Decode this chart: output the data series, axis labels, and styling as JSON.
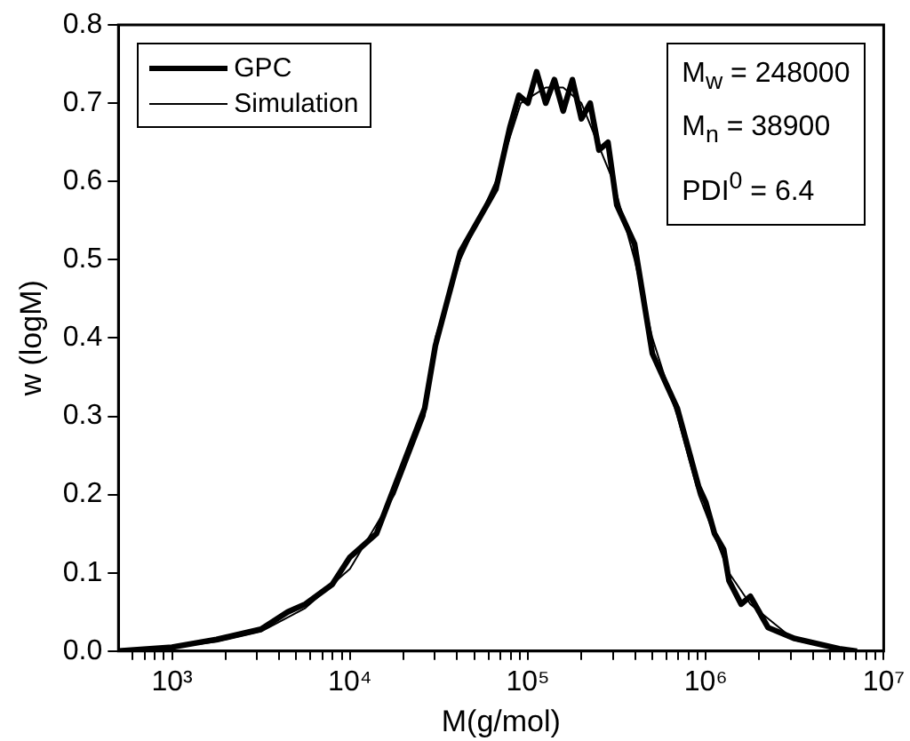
{
  "chart_data": {
    "type": "line",
    "xlabel": "M(g/mol)",
    "ylabel": "w (logM)",
    "log": "x",
    "xlim": [
      500,
      10000000
    ],
    "ylim": [
      0,
      0.8
    ],
    "xticks": [
      {
        "value": 600,
        "label": null
      },
      {
        "value": 700,
        "label": null
      },
      {
        "value": 800,
        "label": null
      },
      {
        "value": 900,
        "label": null
      },
      {
        "value": 1000,
        "label": "10³"
      },
      {
        "value": 2000,
        "label": null
      },
      {
        "value": 3000,
        "label": null
      },
      {
        "value": 4000,
        "label": null
      },
      {
        "value": 5000,
        "label": null
      },
      {
        "value": 6000,
        "label": null
      },
      {
        "value": 7000,
        "label": null
      },
      {
        "value": 8000,
        "label": null
      },
      {
        "value": 9000,
        "label": null
      },
      {
        "value": 10000,
        "label": "10⁴"
      },
      {
        "value": 20000,
        "label": null
      },
      {
        "value": 30000,
        "label": null
      },
      {
        "value": 40000,
        "label": null
      },
      {
        "value": 50000,
        "label": null
      },
      {
        "value": 60000,
        "label": null
      },
      {
        "value": 70000,
        "label": null
      },
      {
        "value": 80000,
        "label": null
      },
      {
        "value": 90000,
        "label": null
      },
      {
        "value": 100000,
        "label": "10⁵"
      },
      {
        "value": 200000,
        "label": null
      },
      {
        "value": 300000,
        "label": null
      },
      {
        "value": 400000,
        "label": null
      },
      {
        "value": 500000,
        "label": null
      },
      {
        "value": 600000,
        "label": null
      },
      {
        "value": 700000,
        "label": null
      },
      {
        "value": 800000,
        "label": null
      },
      {
        "value": 900000,
        "label": null
      },
      {
        "value": 1000000,
        "label": "10⁶"
      },
      {
        "value": 2000000,
        "label": null
      },
      {
        "value": 3000000,
        "label": null
      },
      {
        "value": 4000000,
        "label": null
      },
      {
        "value": 5000000,
        "label": null
      },
      {
        "value": 6000000,
        "label": null
      },
      {
        "value": 7000000,
        "label": null
      },
      {
        "value": 8000000,
        "label": null
      },
      {
        "value": 9000000,
        "label": null
      },
      {
        "value": 10000000,
        "label": "10⁷"
      }
    ],
    "yticks": [
      {
        "value": 0,
        "label": "0.0"
      },
      {
        "value": 0.1,
        "label": "0.1"
      },
      {
        "value": 0.2,
        "label": "0.2"
      },
      {
        "value": 0.3,
        "label": "0.3"
      },
      {
        "value": 0.4,
        "label": "0.4"
      },
      {
        "value": 0.5,
        "label": "0.5"
      },
      {
        "value": 0.6,
        "label": "0.6"
      },
      {
        "value": 0.7,
        "label": "0.7"
      },
      {
        "value": 0.8,
        "label": "0.8"
      }
    ],
    "x": [
      500,
      1000,
      1780,
      3160,
      5620,
      10000,
      17800,
      26300,
      30200,
      41700,
      66100,
      91200,
      126000,
      158000,
      200000,
      302000,
      398000,
      501000,
      692000,
      912000,
      1350000,
      1780000,
      3160000,
      5620000,
      7080000
    ],
    "series": [
      {
        "name": "GPC",
        "color": "#000000",
        "x": [
          500,
          1000,
          1780,
          3160,
          4470,
          5620,
          7940,
          10000,
          14100,
          17800,
          26300,
          30200,
          41700,
          66100,
          79400,
          89100,
          100000,
          112000,
          126000,
          141000,
          158000,
          178000,
          200000,
          224000,
          251000,
          282000,
          316000,
          398000,
          501000,
          692000,
          912000,
          1000000,
          1120000,
          1260000,
          1350000,
          1580000,
          1780000,
          2240000,
          3160000,
          5620000,
          7080000
        ],
        "values": [
          0,
          0.005,
          0.015,
          0.028,
          0.05,
          0.06,
          0.085,
          0.12,
          0.15,
          0.21,
          0.31,
          0.39,
          0.51,
          0.59,
          0.67,
          0.71,
          0.7,
          0.74,
          0.7,
          0.73,
          0.69,
          0.73,
          0.68,
          0.7,
          0.64,
          0.65,
          0.57,
          0.52,
          0.38,
          0.31,
          0.21,
          0.19,
          0.15,
          0.13,
          0.09,
          0.06,
          0.07,
          0.03,
          0.016,
          0.003,
          0
        ]
      },
      {
        "name": "Simulation",
        "color": "#000000",
        "values": [
          0,
          0.005,
          0.012,
          0.025,
          0.055,
          0.105,
          0.2,
          0.3,
          0.4,
          0.5,
          0.6,
          0.7,
          0.72,
          0.72,
          0.7,
          0.6,
          0.5,
          0.4,
          0.3,
          0.2,
          0.1,
          0.06,
          0.014,
          0.002,
          0
        ]
      }
    ],
    "legend": "top left",
    "grid": false,
    "marker": "none",
    "line_style": "solid",
    "annotations": [
      "M$_{w}$ = 248000",
      "M$_{n}$ = 38900",
      "PDI$^{0}$ = 6.4"
    ]
  }
}
